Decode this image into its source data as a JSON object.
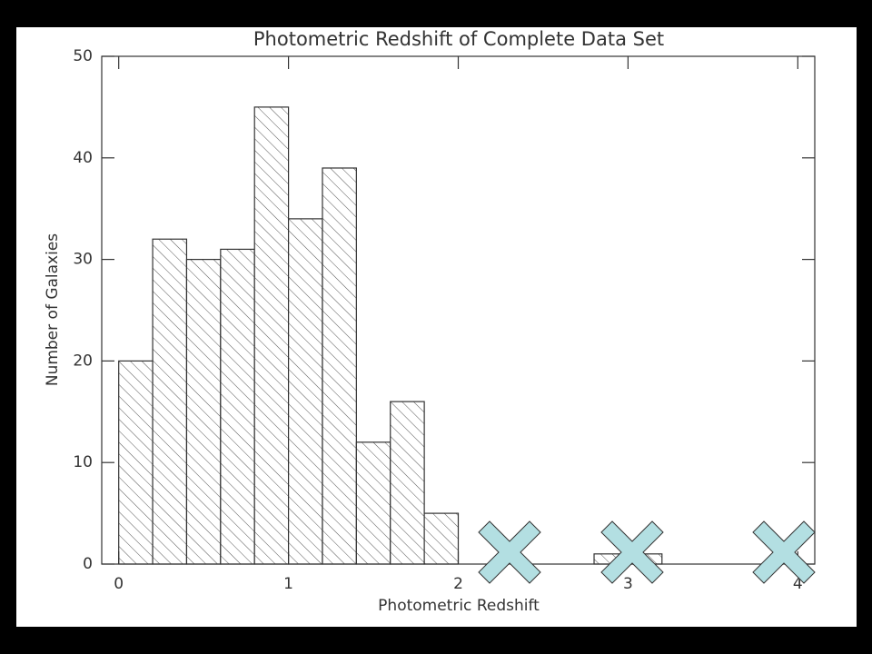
{
  "chart_data": {
    "type": "histogram",
    "title": "Photometric Redshift of Complete Data Set",
    "xlabel": "Photometric Redshift",
    "ylabel": "Number of Galaxies",
    "bins": [
      0,
      0.2,
      0.4,
      0.6,
      0.8,
      1,
      1.2,
      1.4,
      1.6,
      1.8,
      2,
      2.2,
      2.4,
      2.6,
      2.8,
      3,
      3.2,
      3.4,
      3.6,
      3.8,
      4
    ],
    "counts": [
      20,
      32,
      30,
      31,
      45,
      34,
      39,
      12,
      16,
      5,
      0,
      0,
      0,
      0,
      1,
      1,
      0,
      0,
      0,
      0
    ],
    "xlim": [
      -0.1,
      4.1
    ],
    "ylim": [
      0,
      50
    ],
    "xticks": [
      0,
      1,
      2,
      3,
      4
    ],
    "yticks": [
      0,
      10,
      20,
      30,
      40,
      50
    ],
    "hatch": true
  }
}
